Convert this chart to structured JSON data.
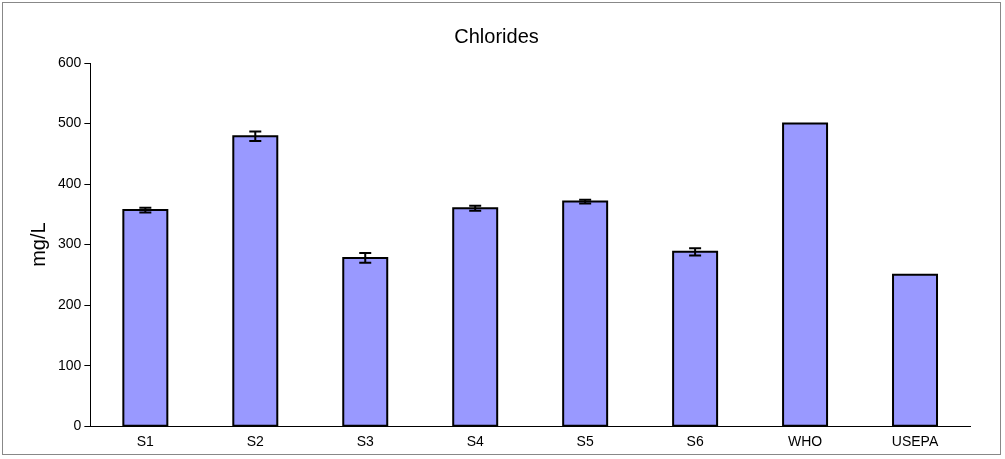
{
  "chart_data": {
    "type": "bar",
    "title": "Chlorides",
    "ylabel": "mg/L",
    "categories": [
      "S1",
      "S2",
      "S3",
      "S4",
      "S5",
      "S6",
      "WHO",
      "USEPA"
    ],
    "values": [
      357,
      479,
      278,
      360,
      371,
      288,
      500,
      250
    ],
    "errors": [
      4,
      8,
      8,
      4,
      3,
      6,
      null,
      null
    ],
    "color": "#9999ff",
    "ylim": [
      0,
      600
    ],
    "yticks": [
      0,
      100,
      200,
      300,
      400,
      500,
      600
    ],
    "grid": false,
    "legend": false
  }
}
